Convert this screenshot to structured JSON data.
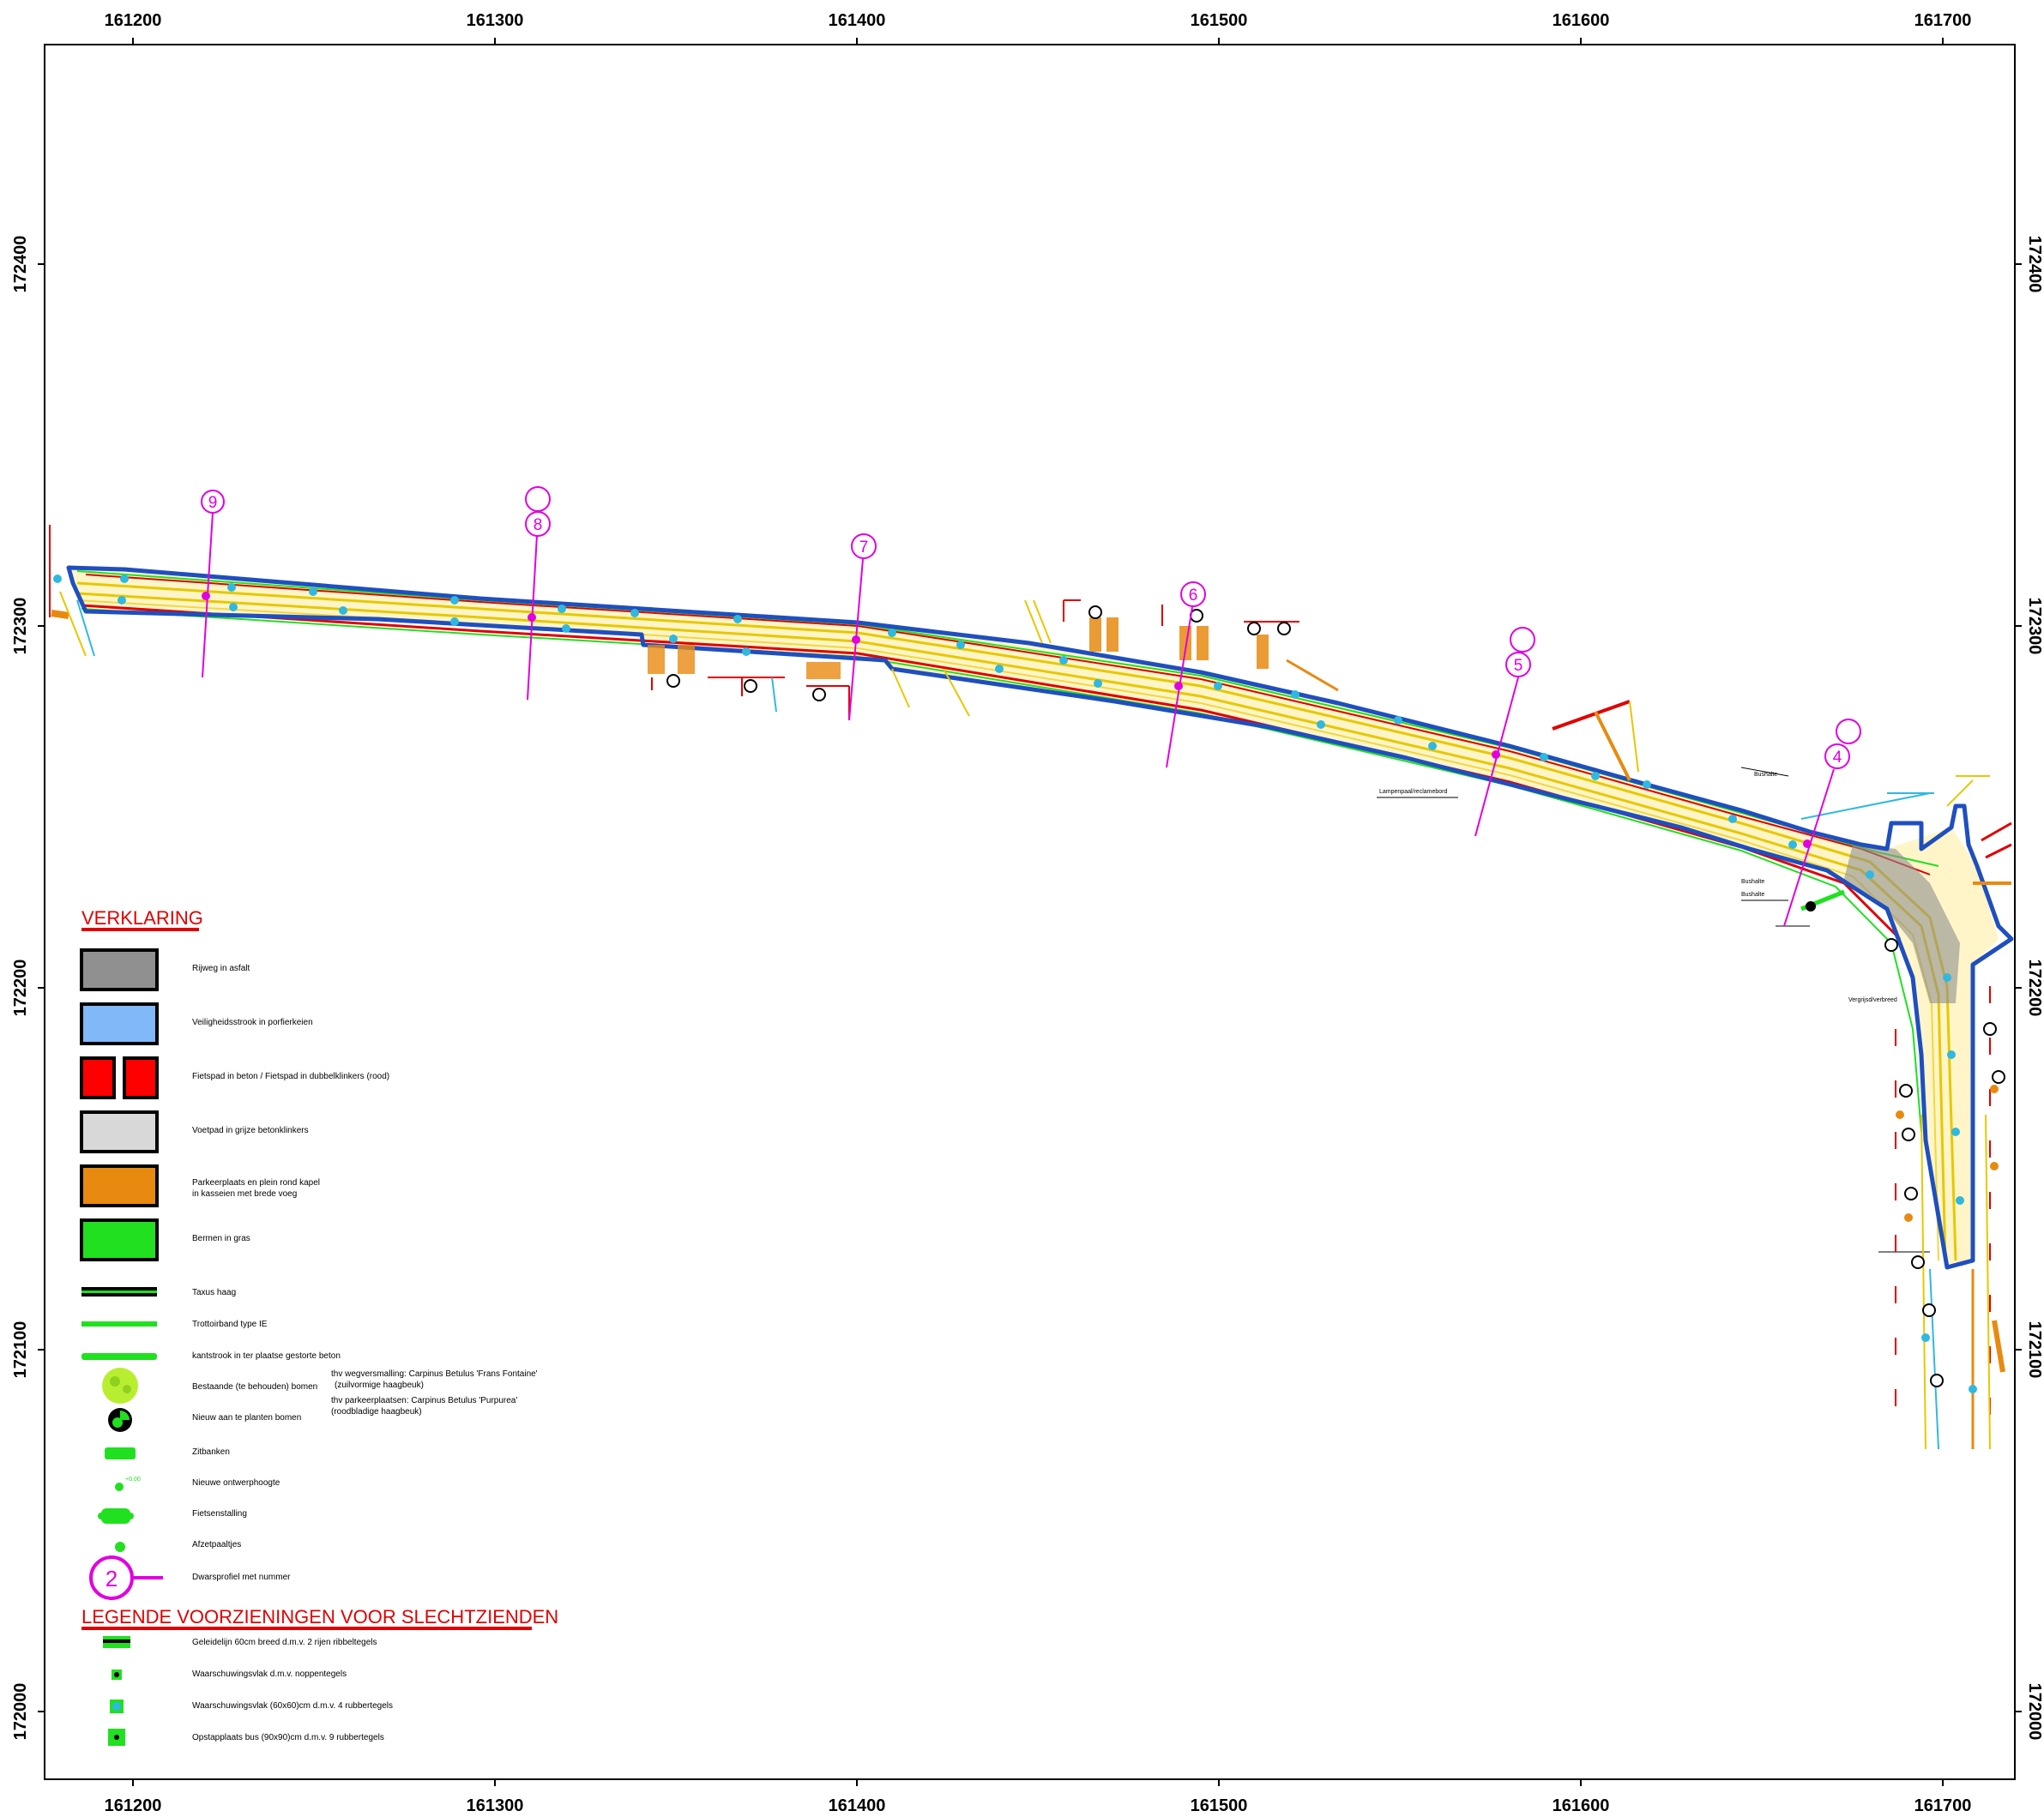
{
  "axes": {
    "x_ticks": [
      "161200",
      "161300",
      "161400",
      "161500",
      "161600",
      "161700"
    ],
    "y_ticks": [
      "172400",
      "172300",
      "172200",
      "172100",
      "172000"
    ]
  },
  "colors": {
    "road_outline": "#1f4fbf",
    "road_fill": "#fff5c8",
    "yellow_lines": "#e6c800",
    "red_lines": "#e00000",
    "green_lines": "#20e020",
    "orange": "#e88a10",
    "cyan": "#30b8e0",
    "magenta": "#e000e0",
    "asphalt": "#909090",
    "porphyry": "#80b8f8",
    "concrete_grey": "#d8d8d8"
  },
  "profiles": [
    {
      "number": "9"
    },
    {
      "number": "8"
    },
    {
      "number": "7"
    },
    {
      "number": "6"
    },
    {
      "number": "5"
    },
    {
      "number": "4"
    }
  ],
  "map_labels": {
    "lamp": "Lampenpaal/reclamebord",
    "bus1": "Bushalte",
    "bus2": "Bushalte",
    "bus3": "Bushalte",
    "verg": "Vergrijsd/verbreed"
  },
  "legend": {
    "title": "VERKLARING",
    "items": [
      {
        "icon": "asphalt-swatch",
        "label": "Rijweg in asfalt"
      },
      {
        "icon": "porphyry-swatch",
        "label": "Veiligheidsstrook in porfierkeien"
      },
      {
        "icon": "red-swatch-pair",
        "label": "Fietspad in beton / Fietspad in dubbelklinkers (rood)"
      },
      {
        "icon": "grey-swatch",
        "label": "Voetpad in grijze betonklinkers"
      },
      {
        "icon": "orange-swatch",
        "label": "Parkeerplaats en plein rond kapel",
        "label2": "in kasseien met brede voeg"
      },
      {
        "icon": "green-swatch",
        "label": "Bermen in gras"
      },
      {
        "icon": "hedge-line-icon",
        "label": "Taxus haag"
      },
      {
        "icon": "green-line-icon",
        "label": "Trottoirband type IE"
      },
      {
        "icon": "green-band-icon",
        "label": "kantstrook in ter plaatse gestorte beton"
      },
      {
        "icon": "existing-tree-icon",
        "label": "Bestaande (te behouden) bomen"
      },
      {
        "icon": "new-tree-icon",
        "label": "Nieuw aan te planten bomen"
      },
      {
        "icon": "bench-icon",
        "label": "Zitbanken"
      },
      {
        "icon": "elevation-icon",
        "label": "Nieuwe ontwerphoogte",
        "icon_text": "+0.00"
      },
      {
        "icon": "bike-rack-icon",
        "label": "Fietsenstalling"
      },
      {
        "icon": "bollard-icon",
        "label": "Afzetpaaltjes"
      },
      {
        "icon": "profile-marker-icon",
        "label": "Dwarsprofiel met nummer",
        "icon_text": "2"
      }
    ],
    "tree_note": [
      "thv wegversmalling: Carpinus Betulus 'Frans Fontaine'",
      "(zuilvormige haagbeuk)",
      "thv parkeerplaatsen: Carpinus Betulus 'Purpurea'",
      "(roodbladige haagbeuk)"
    ],
    "title2": "LEGENDE VOORZIENINGEN VOOR SLECHTZIENDEN",
    "items2": [
      {
        "icon": "guide-line-icon",
        "label": "Geleidelijn 60cm breed d.m.v. 2 rijen ribbeltegels"
      },
      {
        "icon": "warning-area-icon",
        "label": "Waarschuwingsvlak d.m.v. noppentegels"
      },
      {
        "icon": "warning-rubber-icon",
        "label": "Waarschuwingsvlak (60x60)cm d.m.v. 4 rubbertegels"
      },
      {
        "icon": "bus-boarding-icon",
        "label": "Opstapplaats bus (90x90)cm d.m.v. 9 rubbertegels"
      }
    ]
  }
}
